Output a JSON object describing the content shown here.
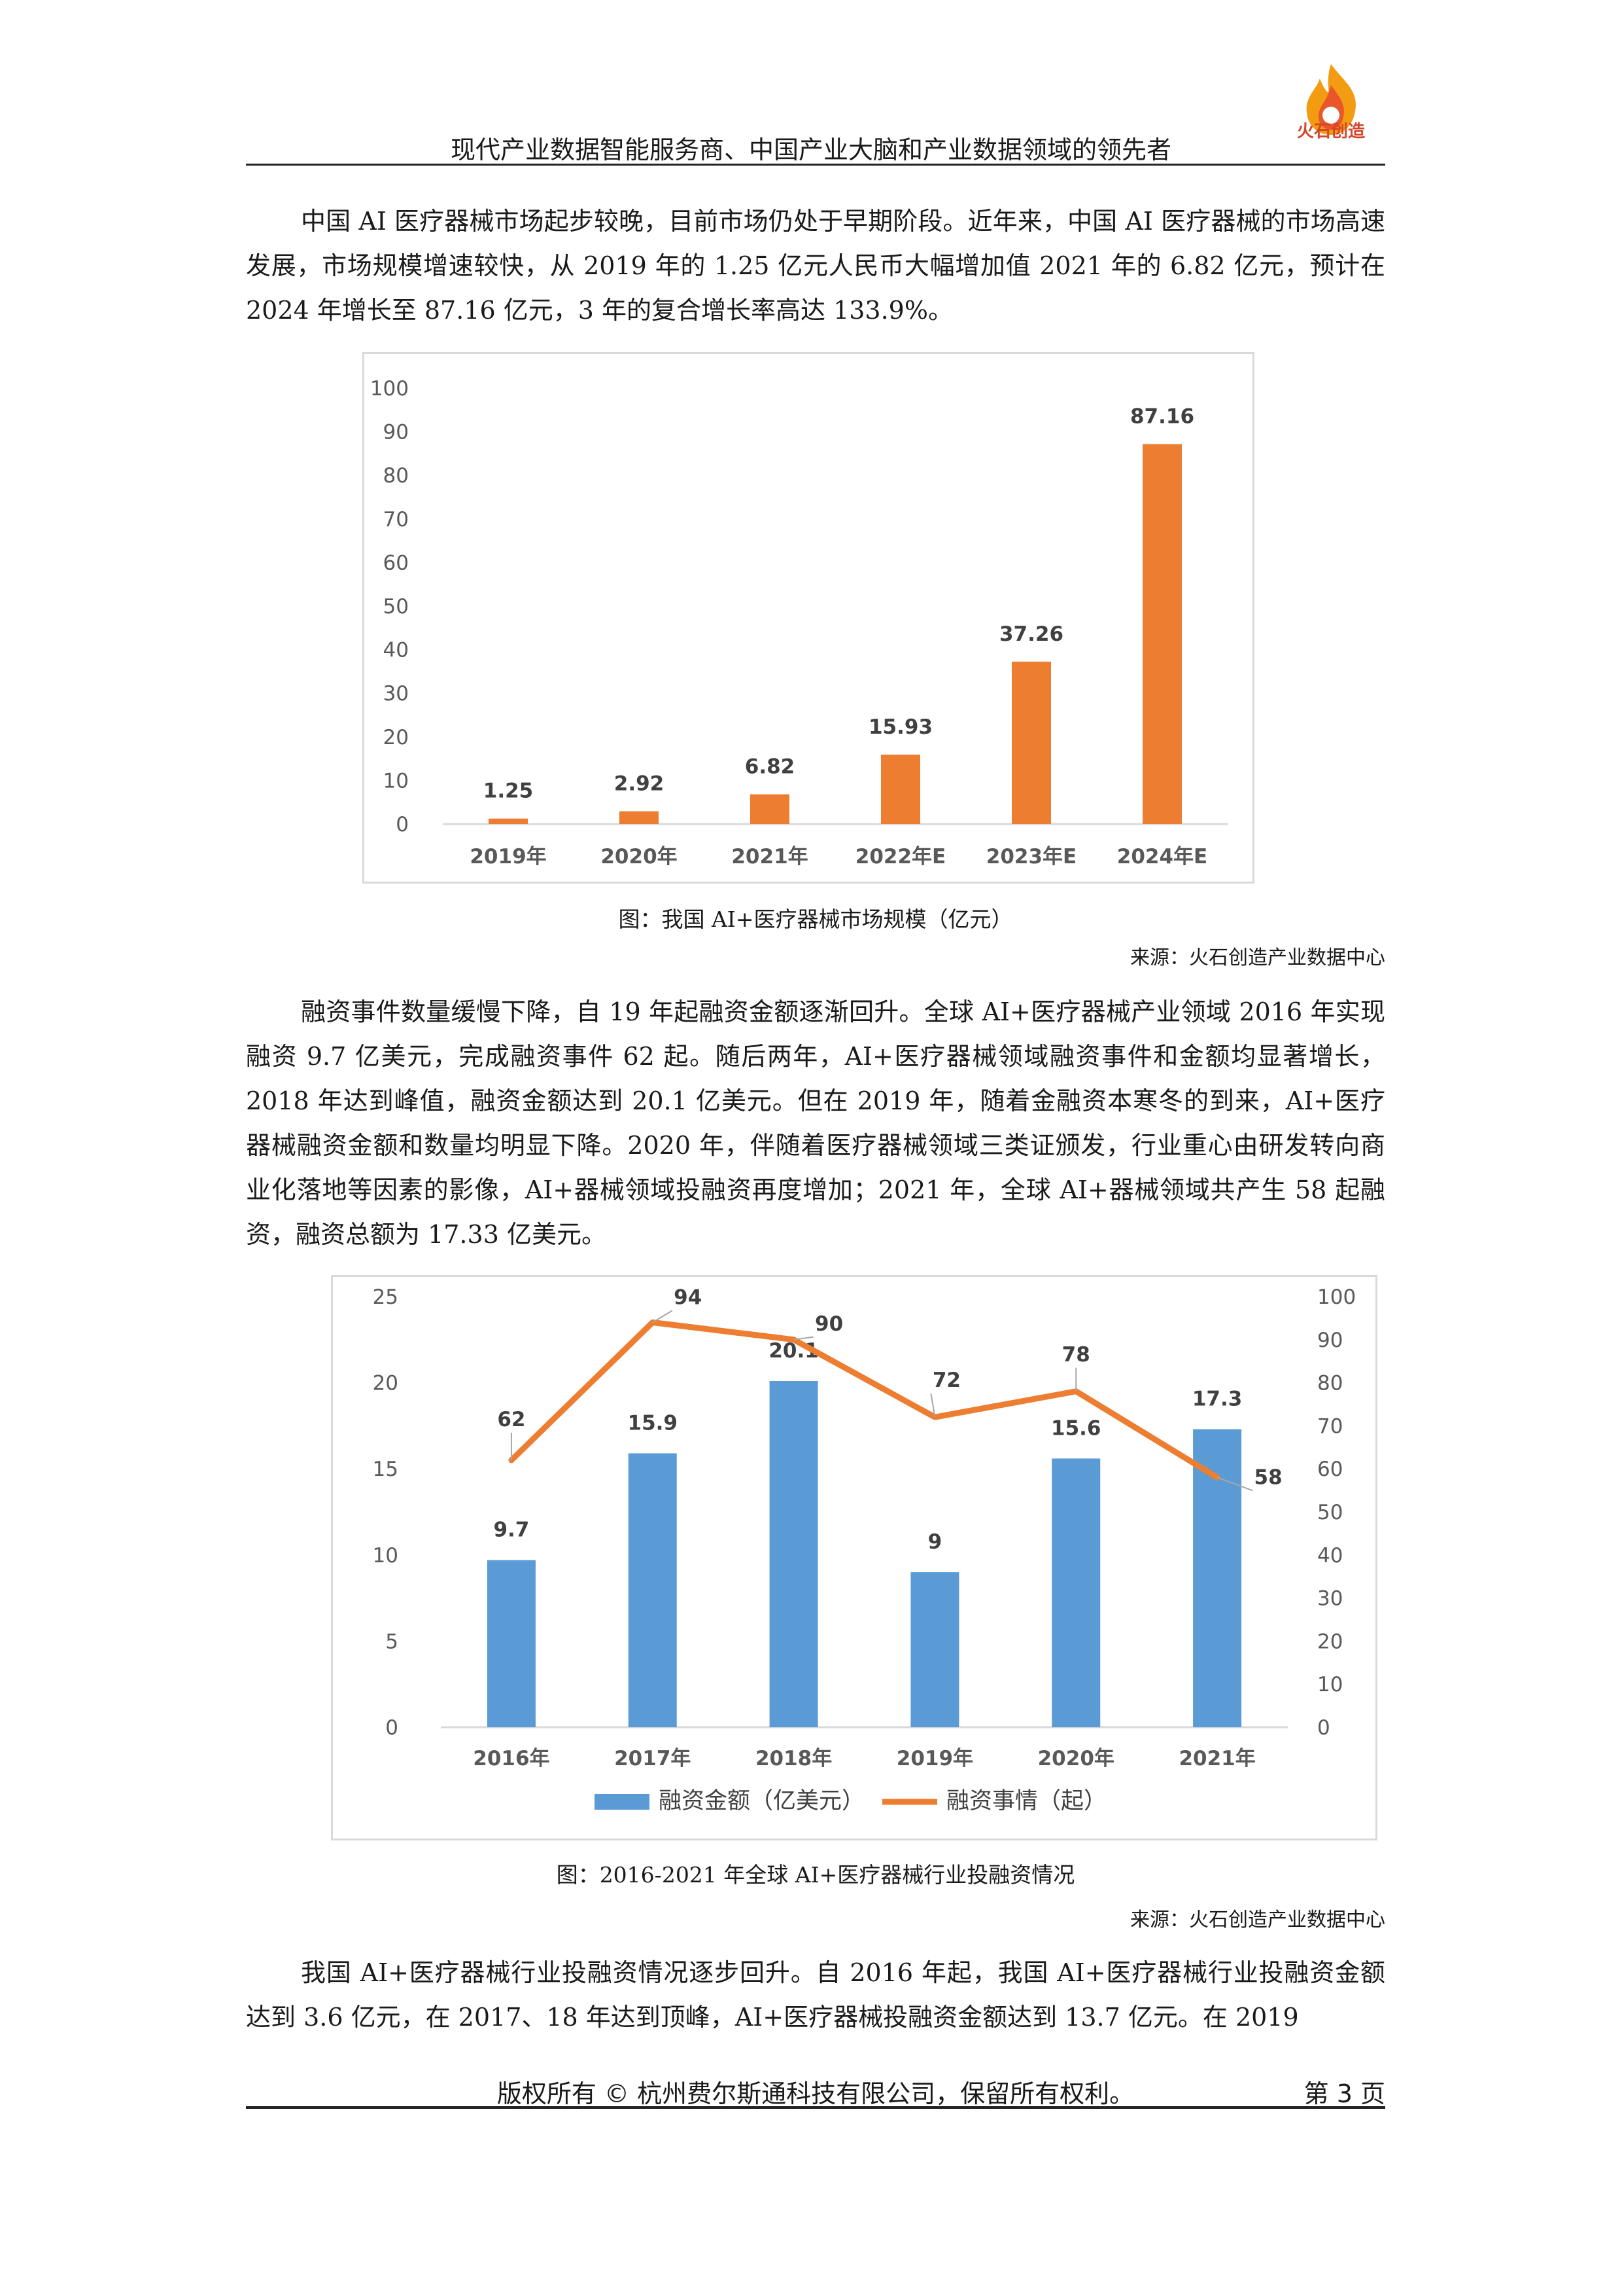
{
  "header": {
    "title": "现代产业数据智能服务商、中国产业大脑和产业数据领域的领先者",
    "logo_text": "火石创造",
    "logo_icon": "flame-logo"
  },
  "paragraphs": {
    "p1": "中国 AI 医疗器械市场起步较晚，目前市场仍处于早期阶段。近年来，中国 AI 医疗器械的市场高速发展，市场规模增速较快，从 2019 年的 1.25 亿元人民币大幅增加值 2021 年的 6.82 亿元，预计在 2024 年增长至 87.16 亿元，3 年的复合增长率高达 133.9%。",
    "p2": "融资事件数量缓慢下降，自 19 年起融资金额逐渐回升。全球 AI+医疗器械产业领域 2016 年实现融资 9.7 亿美元，完成融资事件 62 起。随后两年，AI+医疗器械领域融资事件和金额均显著增长，2018 年达到峰值，融资金额达到 20.1 亿美元。但在 2019 年，随着金融资本寒冬的到来，AI+医疗器械融资金额和数量均明显下降。2020 年，伴随着医疗器械领域三类证颁发，行业重心由研发转向商业化落地等因素的影像，AI+器械领域投融资再度增加；2021 年，全球 AI+器械领域共产生 58 起融资，融资总额为 17.33 亿美元。",
    "p3": "我国 AI+医疗器械行业投融资情况逐步回升。自 2016 年起，我国 AI+医疗器械行业投融资金额达到 3.6 亿元，在 2017、18 年达到顶峰，AI+医疗器械投融资金额达到 13.7 亿元。在 2019"
  },
  "figures": {
    "fig1_caption": "图：我国 AI+医疗器械市场规模（亿元）",
    "fig1_source": "来源：火石创造产业数据中心",
    "fig2_caption": "图：2016-2021 年全球 AI+医疗器械行业投融资情况",
    "fig2_source": "来源：火石创造产业数据中心"
  },
  "chart_data": [
    {
      "type": "bar",
      "categories": [
        "2019年",
        "2020年",
        "2021年",
        "2022年E",
        "2023年E",
        "2024年E"
      ],
      "values": [
        1.25,
        2.92,
        6.82,
        15.93,
        37.26,
        87.16
      ],
      "value_labels": [
        "1.25",
        "2.92",
        "6.82",
        "15.93",
        "37.26",
        "87.16"
      ],
      "ylim": [
        0,
        100
      ],
      "yticks": [
        0,
        10,
        20,
        30,
        40,
        50,
        60,
        70,
        80,
        90,
        100
      ],
      "color": "#ED7D31",
      "grid": false,
      "legend": "none"
    },
    {
      "type": "bar+line",
      "categories": [
        "2016年",
        "2017年",
        "2018年",
        "2019年",
        "2020年",
        "2021年"
      ],
      "series": [
        {
          "name": "融资金额（亿美元）",
          "type": "bar",
          "axis": "left",
          "values": [
            9.7,
            15.9,
            20.1,
            9,
            15.6,
            17.3
          ],
          "value_labels": [
            "9.7",
            "15.9",
            "20.1",
            "9",
            "15.6",
            "17.3"
          ],
          "color": "#5B9BD5"
        },
        {
          "name": "融资事情（起）",
          "type": "line",
          "axis": "right",
          "values": [
            62,
            94,
            90,
            72,
            78,
            58
          ],
          "value_labels": [
            "62",
            "94",
            "90",
            "72",
            "78",
            "58"
          ],
          "color": "#ED7D31"
        }
      ],
      "ylim_left": [
        0,
        25
      ],
      "yticks_left": [
        0,
        5,
        10,
        15,
        20,
        25
      ],
      "ylim_right": [
        0,
        100
      ],
      "yticks_right": [
        0,
        10,
        20,
        30,
        40,
        50,
        60,
        70,
        80,
        90,
        100
      ],
      "grid": false,
      "legend": "bottom"
    }
  ],
  "footer": {
    "copyright": "版权所有 © 杭州费尔斯通科技有限公司，保留所有权利。",
    "page": "第 3 页"
  }
}
